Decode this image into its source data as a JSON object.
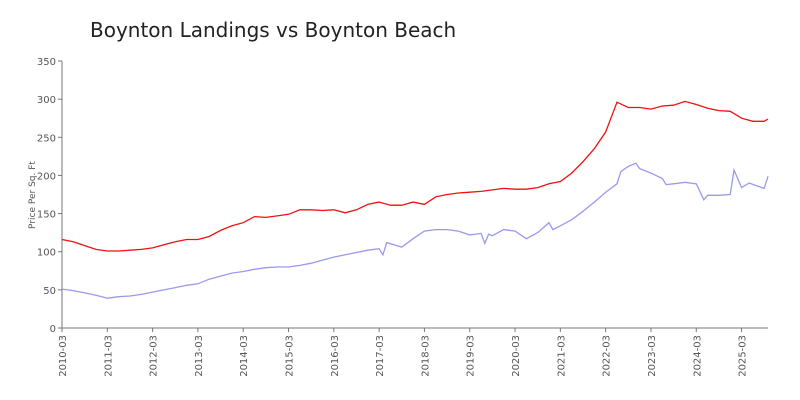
{
  "chart_data": {
    "type": "line",
    "title": "Boynton Landings vs Boynton Beach",
    "y_label": "Price Per Sq. Ft",
    "xlim": [
      "2010-03",
      "2025-10"
    ],
    "xticks": [
      "2010-03",
      "2011-03",
      "2012-03",
      "2013-03",
      "2014-03",
      "2015-03",
      "2016-03",
      "2017-03",
      "2018-03",
      "2019-03",
      "2020-03",
      "2021-03",
      "2022-03",
      "2023-03",
      "2024-03",
      "2025-03"
    ],
    "ylim": [
      0,
      350
    ],
    "yticks": [
      0,
      50,
      100,
      150,
      200,
      250,
      300,
      350
    ],
    "grid": false,
    "series": [
      {
        "color": "#ee1111",
        "x": [
          "2010-03",
          "2010-06",
          "2010-09",
          "2010-12",
          "2011-03",
          "2011-06",
          "2011-09",
          "2011-12",
          "2012-03",
          "2012-06",
          "2012-09",
          "2012-12",
          "2013-03",
          "2013-06",
          "2013-09",
          "2013-12",
          "2014-03",
          "2014-06",
          "2014-09",
          "2014-12",
          "2015-03",
          "2015-06",
          "2015-09",
          "2015-12",
          "2016-03",
          "2016-06",
          "2016-09",
          "2016-12",
          "2017-03",
          "2017-06",
          "2017-09",
          "2017-12",
          "2018-03",
          "2018-06",
          "2018-09",
          "2018-12",
          "2019-03",
          "2019-06",
          "2019-09",
          "2019-12",
          "2020-03",
          "2020-06",
          "2020-09",
          "2020-12",
          "2021-03",
          "2021-06",
          "2021-09",
          "2021-12",
          "2022-03",
          "2022-06",
          "2022-09",
          "2022-12",
          "2023-03",
          "2023-06",
          "2023-09",
          "2023-12",
          "2024-03",
          "2024-06",
          "2024-09",
          "2024-12",
          "2025-03",
          "2025-06",
          "2025-09",
          "2025-10"
        ],
        "values": [
          116,
          113,
          108,
          103,
          101,
          101,
          102,
          103,
          105,
          109,
          113,
          116,
          116,
          120,
          128,
          134,
          138,
          146,
          145,
          147,
          149,
          155,
          155,
          154,
          155,
          151,
          155,
          162,
          165,
          161,
          161,
          165,
          162,
          172,
          175,
          177,
          178,
          179,
          181,
          183,
          182,
          182,
          184,
          189,
          192,
          203,
          218,
          235,
          257,
          296,
          289,
          289,
          287,
          291,
          292,
          297,
          293,
          288,
          285,
          284,
          275,
          271,
          271,
          274
        ]
      },
      {
        "color": "#9999ee",
        "x": [
          "2010-03",
          "2010-06",
          "2010-09",
          "2010-12",
          "2011-03",
          "2011-06",
          "2011-09",
          "2011-12",
          "2012-03",
          "2012-06",
          "2012-09",
          "2012-12",
          "2013-03",
          "2013-06",
          "2013-09",
          "2013-12",
          "2014-03",
          "2014-06",
          "2014-09",
          "2014-12",
          "2015-03",
          "2015-06",
          "2015-09",
          "2015-12",
          "2016-03",
          "2016-06",
          "2016-09",
          "2016-12",
          "2017-03",
          "2017-04",
          "2017-05",
          "2017-09",
          "2017-12",
          "2018-03",
          "2018-06",
          "2018-09",
          "2018-12",
          "2019-03",
          "2019-06",
          "2019-07",
          "2019-08",
          "2019-09",
          "2019-12",
          "2020-03",
          "2020-06",
          "2020-09",
          "2020-12",
          "2021-01",
          "2021-03",
          "2021-06",
          "2021-09",
          "2021-12",
          "2022-03",
          "2022-06",
          "2022-07",
          "2022-09",
          "2022-11",
          "2022-12",
          "2023-03",
          "2023-06",
          "2023-07",
          "2023-09",
          "2023-12",
          "2024-03",
          "2024-05",
          "2024-06",
          "2024-09",
          "2024-12",
          "2025-01",
          "2025-03",
          "2025-05",
          "2025-09",
          "2025-10"
        ],
        "values": [
          51,
          49,
          46,
          43,
          39,
          41,
          42,
          44,
          47,
          50,
          53,
          56,
          58,
          64,
          68,
          72,
          74,
          77,
          79,
          80,
          80,
          82,
          85,
          89,
          93,
          96,
          99,
          102,
          104,
          96,
          112,
          106,
          117,
          127,
          129,
          129,
          127,
          122,
          124,
          111,
          123,
          121,
          129,
          127,
          117,
          125,
          138,
          129,
          134,
          142,
          153,
          165,
          178,
          189,
          205,
          212,
          216,
          209,
          203,
          196,
          188,
          189,
          191,
          189,
          168,
          174,
          174,
          175,
          207,
          184,
          190,
          183,
          199
        ]
      }
    ]
  }
}
